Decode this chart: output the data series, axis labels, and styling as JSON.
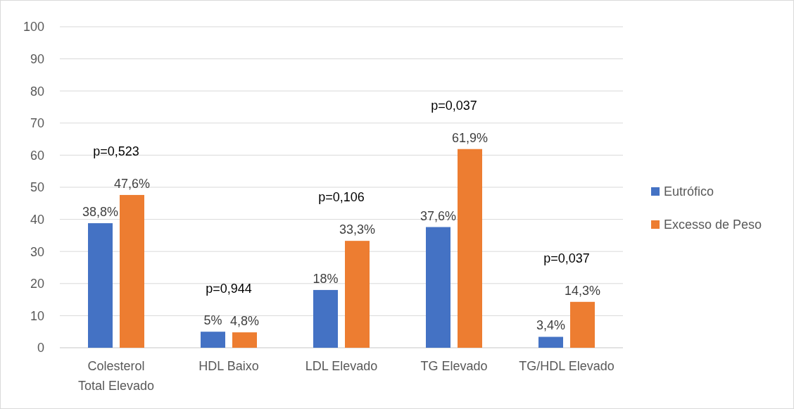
{
  "chart_data": {
    "type": "bar",
    "categories": [
      "Colesterol Total Elevado",
      "HDL Baixo",
      "LDL Elevado",
      "TG Elevado",
      "TG/HDL Elevado"
    ],
    "series": [
      {
        "name": "Eutrófico",
        "color": "#4472c4",
        "values": [
          38.8,
          5,
          18,
          37.6,
          3.4
        ],
        "value_labels": [
          "38,8%",
          "5%",
          "18%",
          "37,6%",
          "3,4%"
        ]
      },
      {
        "name": "Excesso de Peso",
        "color": "#ed7d31",
        "values": [
          47.6,
          4.8,
          33.3,
          61.9,
          14.3
        ],
        "value_labels": [
          "47,6%",
          "4,8%",
          "33,3%",
          "61,9%",
          "14,3%"
        ]
      }
    ],
    "annotations": [
      "p=0,523",
      "p=0,944",
      "p=0,106",
      "p=0,037",
      "p=0,037"
    ],
    "ylim": [
      0,
      100
    ],
    "yticks": [
      0,
      10,
      20,
      30,
      40,
      50,
      60,
      70,
      80,
      90,
      100
    ],
    "grid": "y",
    "legend": "right"
  }
}
